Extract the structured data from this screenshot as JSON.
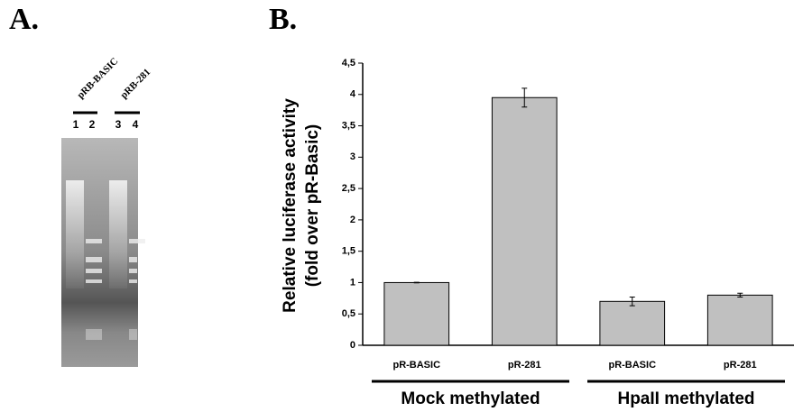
{
  "panel_a": {
    "label": "A.",
    "lane_groups": [
      "pRB-BASIC",
      "pRB-281"
    ],
    "lanes": [
      "1",
      "2",
      "3",
      "4"
    ]
  },
  "chart_data": {
    "type": "bar",
    "panel_label": "B.",
    "y_label": [
      "Relative luciferase activity",
      "(fold over pR-Basic)"
    ],
    "categories": [
      "pR-BASIC",
      "pR-281",
      "pR-BASIC",
      "pR-281"
    ],
    "groups": [
      "Mock methylated",
      "HpaII methylated"
    ],
    "values": [
      1.0,
      3.95,
      0.7,
      0.8
    ],
    "errors": [
      0.005,
      0.15,
      0.07,
      0.03
    ],
    "color": "#c0c0c0",
    "ylim": [
      0,
      4.5
    ],
    "yticks": [
      0,
      {
        "value": 0.5,
        "label": "0,5"
      },
      1,
      {
        "value": 1.5,
        "label": "1,5"
      },
      2,
      {
        "value": 2.5,
        "label": "2,5"
      },
      3,
      {
        "value": 3.5,
        "label": "3,5"
      },
      4,
      {
        "value": 4.5,
        "label": "4,5"
      }
    ],
    "grid": false
  }
}
